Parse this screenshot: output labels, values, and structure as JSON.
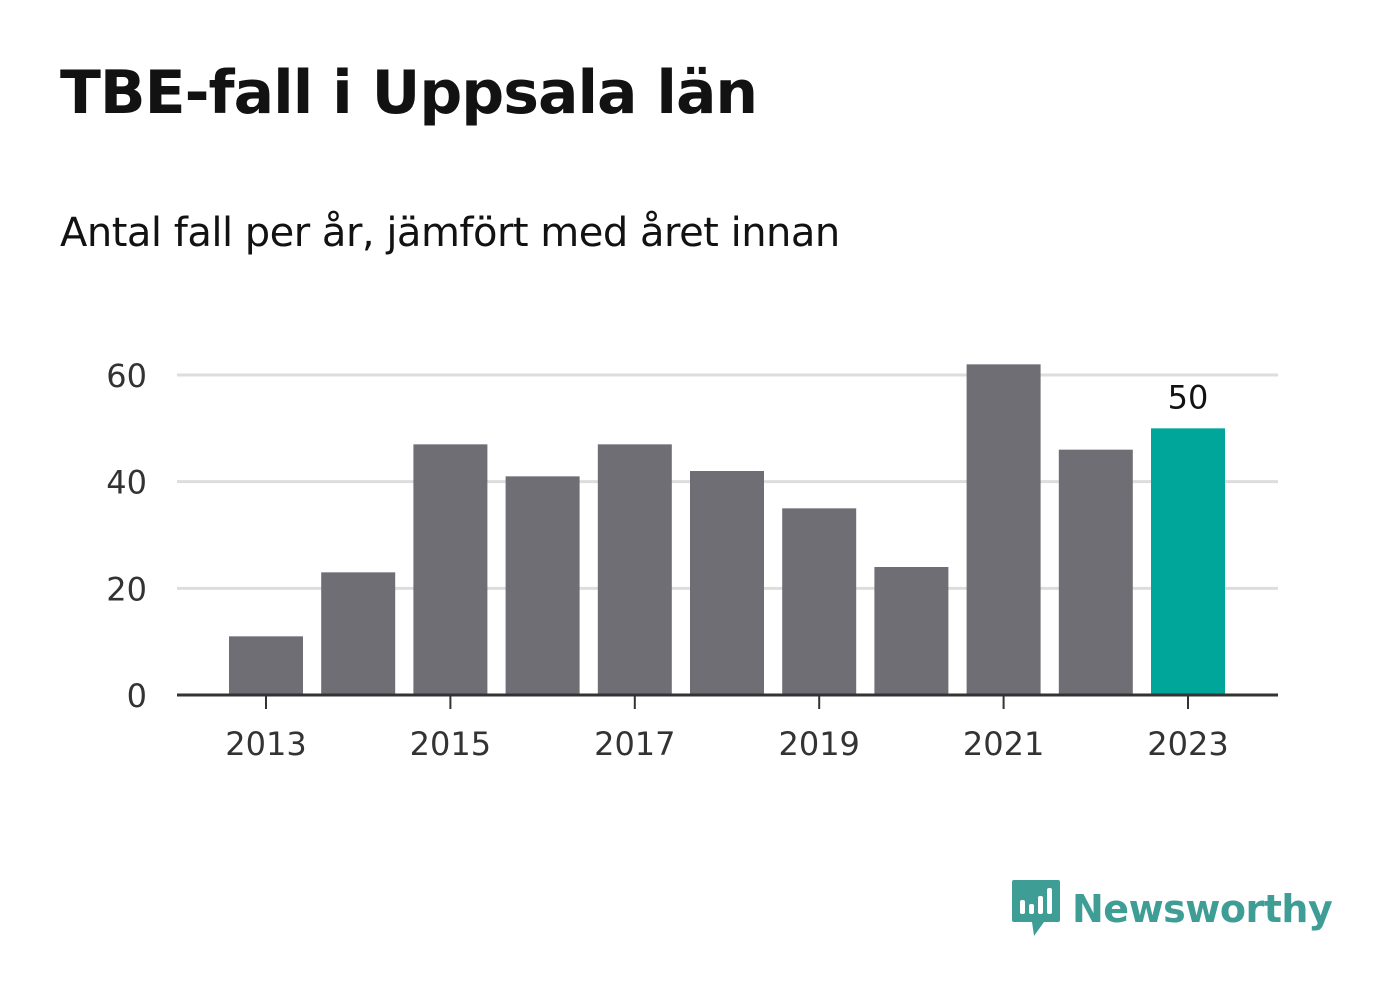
{
  "title": "TBE-fall i Uppsala län",
  "subtitle": "Antal fall per år, jämfört med året innan",
  "brand": {
    "name": "Newsworthy",
    "icon": "newsworthy-logo-icon",
    "color": "#3e9e96"
  },
  "colors": {
    "bar": "#6f6e74",
    "highlight": "#00a69a",
    "grid": "#dddddd",
    "axis": "#333333"
  },
  "chart_data": {
    "type": "bar",
    "title": "",
    "xlabel": "",
    "ylabel": "",
    "categories": [
      "2013",
      "2014",
      "2015",
      "2016",
      "2017",
      "2018",
      "2019",
      "2020",
      "2021",
      "2022",
      "2023"
    ],
    "values": [
      11,
      23,
      47,
      41,
      47,
      42,
      35,
      24,
      62,
      46,
      50
    ],
    "highlight": "2023",
    "data_labels": [
      {
        "category": "2023",
        "text": "50"
      }
    ],
    "ylim": [
      0,
      65
    ],
    "yticks": [
      0,
      20,
      40,
      60
    ],
    "xticks": [
      "2013",
      "2015",
      "2017",
      "2019",
      "2021",
      "2023"
    ],
    "grid": true,
    "legend": "none"
  }
}
